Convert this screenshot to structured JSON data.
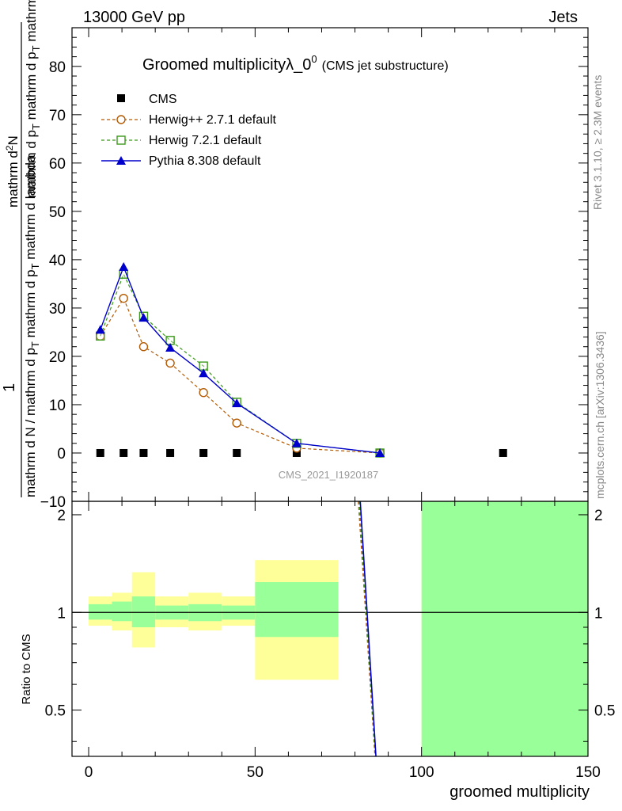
{
  "header": {
    "energy": "13000 GeV pp",
    "process": "Jets"
  },
  "side": {
    "rivet": "Rivet 3.1.10, ≥ 2.3M events",
    "mcplots": "mcplots.cern.ch [arXiv:1306.3436]"
  },
  "chart_data": [
    {
      "type": "line",
      "title": "Groomed multiplicityλ_0",
      "title_sup": "0",
      "title_note": "(CMS jet substructure)",
      "watermark": "CMS_2021_I1920187",
      "ylabel_num": "1",
      "ylabel_den": "mathrm d N / mathrm d p_T mathrm d p_T mathrm d lambda",
      "ylabel_top": "mathrm d²N",
      "ylabel_parts": {
        "frac_num": "1",
        "num_a": "mathrm d",
        "num_sup": "2",
        "num_b": "N",
        "den_a": "mathrm d p",
        "den_sub1": "T",
        "den_b": " mathrm d p",
        "den_sub2": "T",
        "den_c": " mathrm d lambda",
        "left_a": "mathrm d N / mathrm d p",
        "left_sub": "T",
        "left_b": " mathrm d p",
        "left_sub2": "T",
        "left_c": " mathrm d lambda"
      },
      "xlim": [
        -5,
        150
      ],
      "ylim": [
        -10,
        88
      ],
      "yticks": [
        -10,
        0,
        10,
        20,
        30,
        40,
        50,
        60,
        70,
        80
      ],
      "legend": [
        "CMS",
        "Herwig++ 2.7.1 default",
        "Herwig 7.2.1 default",
        "Pythia 8.308 default"
      ],
      "series": [
        {
          "name": "CMS",
          "color": "#000000",
          "marker": "square",
          "x": [
            3.5,
            10.5,
            16.5,
            24.5,
            34.5,
            44.5,
            62.5,
            87.5,
            124.5
          ],
          "y": [
            0,
            0,
            0,
            0,
            0,
            0,
            0,
            0,
            0
          ]
        },
        {
          "name": "Herwig++ 2.7.1 default",
          "color": "#b35900",
          "marker": "circle",
          "dash": "dashed",
          "x": [
            3.5,
            10.5,
            16.5,
            24.5,
            34.5,
            44.5,
            62.5,
            87.5
          ],
          "y": [
            24.2,
            32.0,
            22.0,
            18.6,
            12.5,
            6.2,
            1.0,
            0.0
          ]
        },
        {
          "name": "Herwig 7.2.1 default",
          "color": "#3a9a1a",
          "marker": "open-square",
          "dash": "dashed",
          "x": [
            3.5,
            10.5,
            16.5,
            24.5,
            34.5,
            44.5,
            62.5,
            87.5
          ],
          "y": [
            24.2,
            37.0,
            28.3,
            23.3,
            18.0,
            10.5,
            2.0,
            0.0
          ]
        },
        {
          "name": "Pythia 8.308 default",
          "color": "#0000cc",
          "marker": "triangle",
          "x": [
            3.5,
            10.5,
            16.5,
            24.5,
            34.5,
            44.5,
            62.5,
            87.5
          ],
          "y": [
            25.5,
            38.5,
            28.0,
            21.8,
            16.5,
            10.3,
            2.0,
            0.0
          ]
        }
      ]
    },
    {
      "type": "line",
      "ylabel": "Ratio to CMS",
      "xlabel": "groomed multiplicity",
      "xlim": [
        -5,
        150
      ],
      "ylim": [
        0.36,
        2.2
      ],
      "yticks": [
        0.5,
        1,
        2
      ],
      "xticks": [
        0,
        50,
        100,
        150
      ],
      "reference": 1,
      "bands": [
        {
          "x0": 0,
          "x1": 7,
          "inner": [
            0.95,
            1.06
          ],
          "outer": [
            0.91,
            1.12
          ]
        },
        {
          "x0": 7,
          "x1": 13,
          "inner": [
            0.94,
            1.08
          ],
          "outer": [
            0.88,
            1.15
          ]
        },
        {
          "x0": 13,
          "x1": 20,
          "inner": [
            0.9,
            1.12
          ],
          "outer": [
            0.78,
            1.33
          ]
        },
        {
          "x0": 20,
          "x1": 30,
          "inner": [
            0.95,
            1.05
          ],
          "outer": [
            0.9,
            1.12
          ]
        },
        {
          "x0": 30,
          "x1": 40,
          "inner": [
            0.94,
            1.06
          ],
          "outer": [
            0.88,
            1.15
          ]
        },
        {
          "x0": 40,
          "x1": 50,
          "inner": [
            0.95,
            1.05
          ],
          "outer": [
            0.91,
            1.12
          ]
        },
        {
          "x0": 50,
          "x1": 75,
          "inner": [
            0.84,
            1.24
          ],
          "outer": [
            0.62,
            1.45
          ]
        },
        {
          "x0": 100,
          "x1": 150,
          "inner": [
            0.36,
            2.2
          ],
          "outer": [
            0.36,
            2.2
          ]
        }
      ],
      "band_colors": {
        "inner": "#99ff99",
        "outer": "#ffff99"
      },
      "ratio_series": [
        {
          "name": "Herwig++ 2.7.1 default",
          "color": "#b35900",
          "x": [
            81.0,
            86.0
          ],
          "y": [
            2.2,
            0.36
          ]
        },
        {
          "name": "Herwig 7.2.1 default",
          "color": "#3a9a1a",
          "x": [
            81.3,
            86.1
          ],
          "y": [
            2.2,
            0.36
          ]
        },
        {
          "name": "Pythia 8.308 default",
          "color": "#0000cc",
          "x": [
            81.6,
            86.3
          ],
          "y": [
            2.2,
            0.36
          ]
        }
      ]
    }
  ]
}
